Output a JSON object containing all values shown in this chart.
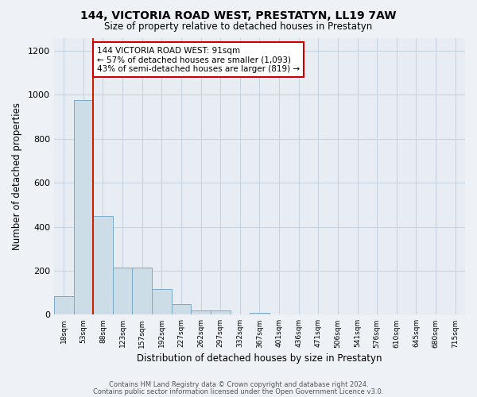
{
  "title1": "144, VICTORIA ROAD WEST, PRESTATYN, LL19 7AW",
  "title2": "Size of property relative to detached houses in Prestatyn",
  "xlabel": "Distribution of detached houses by size in Prestatyn",
  "ylabel": "Number of detached properties",
  "bin_labels": [
    "18sqm",
    "53sqm",
    "88sqm",
    "123sqm",
    "157sqm",
    "192sqm",
    "227sqm",
    "262sqm",
    "297sqm",
    "332sqm",
    "367sqm",
    "401sqm",
    "436sqm",
    "471sqm",
    "506sqm",
    "541sqm",
    "576sqm",
    "610sqm",
    "645sqm",
    "680sqm",
    "715sqm"
  ],
  "bar_values": [
    85,
    975,
    450,
    215,
    215,
    115,
    48,
    20,
    20,
    0,
    10,
    0,
    0,
    0,
    0,
    0,
    0,
    0,
    0,
    0,
    0
  ],
  "bar_color": "#ccdde8",
  "bar_edge_color": "#7aaac8",
  "property_line_x": 2.0,
  "annotation_text": "144 VICTORIA ROAD WEST: 91sqm\n← 57% of detached houses are smaller (1,093)\n43% of semi-detached houses are larger (819) →",
  "annotation_box_color": "white",
  "annotation_box_edge": "#cc0000",
  "vline_color": "#cc2200",
  "ylim": [
    0,
    1260
  ],
  "yticks": [
    0,
    200,
    400,
    600,
    800,
    1000,
    1200
  ],
  "footer1": "Contains HM Land Registry data © Crown copyright and database right 2024.",
  "footer2": "Contains public sector information licensed under the Open Government Licence v3.0.",
  "bg_color": "#eef2f7",
  "plot_bg_color": "#e8edf4",
  "grid_color": "#c8d4e0"
}
